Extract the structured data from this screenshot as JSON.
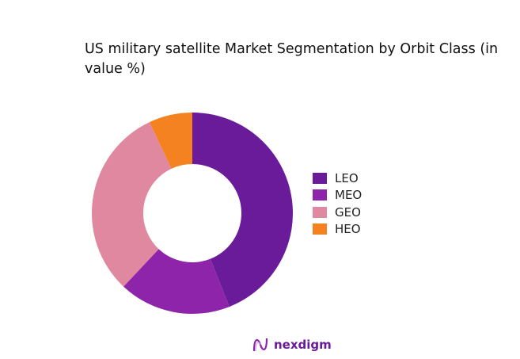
{
  "chart_data": {
    "type": "pie",
    "donut": true,
    "title": "US military satellite Market Segmentation by Orbit Class (in value %)",
    "categories": [
      "LEO",
      "MEO",
      "GEO",
      "HEO"
    ],
    "values": [
      44,
      18,
      31,
      7
    ],
    "colors": [
      "#6a1b9a",
      "#8e24aa",
      "#e088a0",
      "#f58220"
    ],
    "legend_position": "right"
  },
  "logo": {
    "text": "nexdigm"
  }
}
